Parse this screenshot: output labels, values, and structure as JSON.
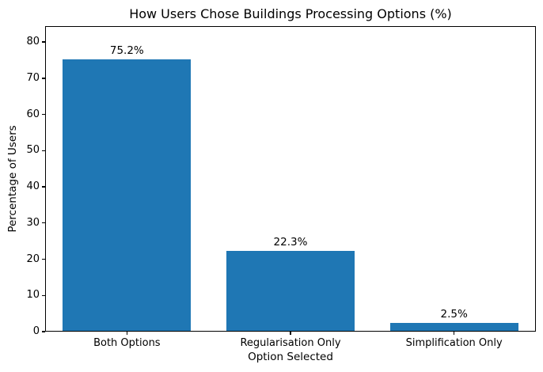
{
  "chart_data": {
    "type": "bar",
    "title": "How Users Chose Buildings Processing Options (%)",
    "xlabel": "Option Selected",
    "ylabel": "Percentage of Users",
    "categories": [
      "Both Options",
      "Regularisation Only",
      "Simplification Only"
    ],
    "values": [
      75.2,
      22.3,
      2.5
    ],
    "bar_labels": [
      "75.2%",
      "22.3%",
      "2.5%"
    ],
    "yticks": [
      0,
      10,
      20,
      30,
      40,
      50,
      60,
      70,
      80
    ],
    "ylim": [
      0,
      84.4
    ],
    "bar_color": "#1f77b4",
    "axis_color": "#000000",
    "grid": false,
    "legend": "none",
    "background_color": "#ffffff"
  }
}
